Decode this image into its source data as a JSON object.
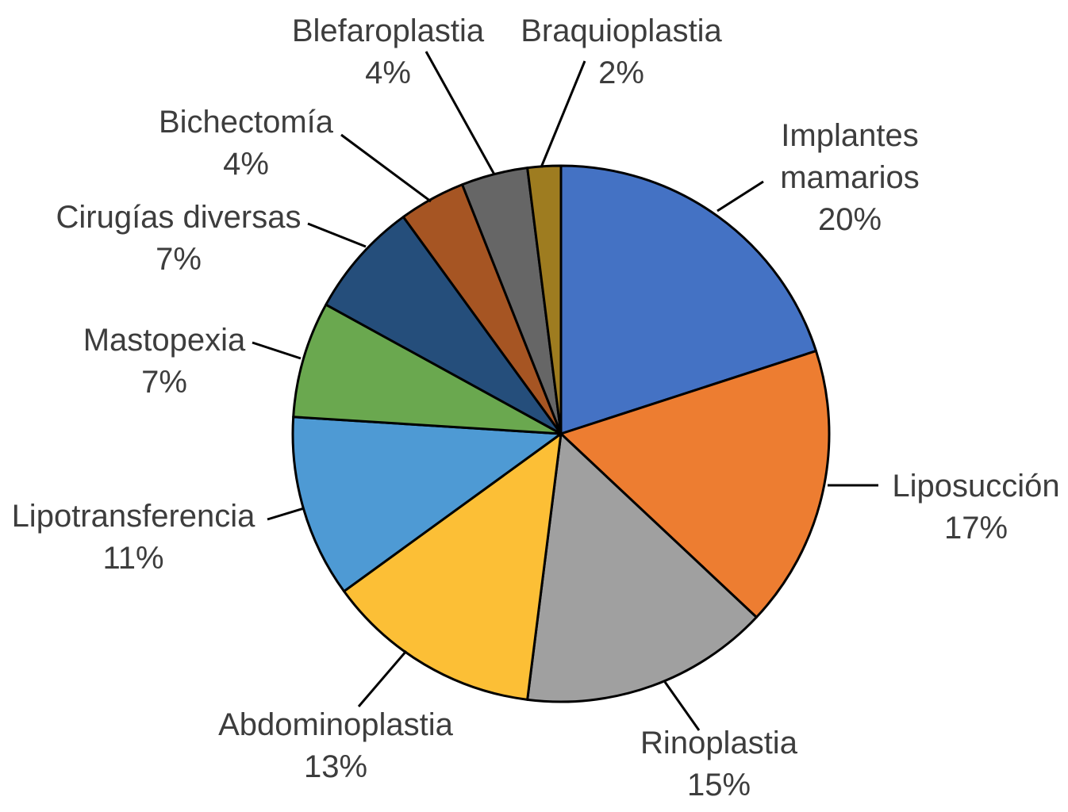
{
  "chart_data": {
    "type": "pie",
    "title": "",
    "unit": "%",
    "start_angle_deg": 0,
    "direction": "clockwise",
    "legend": "none",
    "background": "#FFFFFF",
    "outline_color": "#000000",
    "label_text_color": "#3D3D3D",
    "categories": [
      "Implantes mamarios",
      "Liposucción",
      "Rinoplastia",
      "Abdominoplastia",
      "Lipotransferencia",
      "Mastopexia",
      "Cirugías diversas",
      "Bichectomía",
      "Blefaroplastia",
      "Braquioplastia"
    ],
    "values": [
      20,
      17,
      15,
      13,
      11,
      7,
      7,
      4,
      4,
      2
    ],
    "slices": [
      {
        "label": "Implantes mamarios",
        "value": 20,
        "pct_label": "20%",
        "color": "#4472C4"
      },
      {
        "label": "Liposucción",
        "value": 17,
        "pct_label": "17%",
        "color": "#ED7D31"
      },
      {
        "label": "Rinoplastia",
        "value": 15,
        "pct_label": "15%",
        "color": "#A0A0A0"
      },
      {
        "label": "Abdominoplastia",
        "value": 13,
        "pct_label": "13%",
        "color": "#FCBF36"
      },
      {
        "label": "Lipotransferencia",
        "value": 11,
        "pct_label": "11%",
        "color": "#4E9AD4"
      },
      {
        "label": "Mastopexia",
        "value": 7,
        "pct_label": "7%",
        "color": "#6AA84F"
      },
      {
        "label": "Cirugías diversas",
        "value": 7,
        "pct_label": "7%",
        "color": "#254E7B"
      },
      {
        "label": "Bichectomía",
        "value": 4,
        "pct_label": "4%",
        "color": "#A65523"
      },
      {
        "label": "Blefaroplastia",
        "value": 4,
        "pct_label": "4%",
        "color": "#666666"
      },
      {
        "label": "Braquioplastia",
        "value": 2,
        "pct_label": "2%",
        "color": "#9E7C20"
      }
    ]
  }
}
